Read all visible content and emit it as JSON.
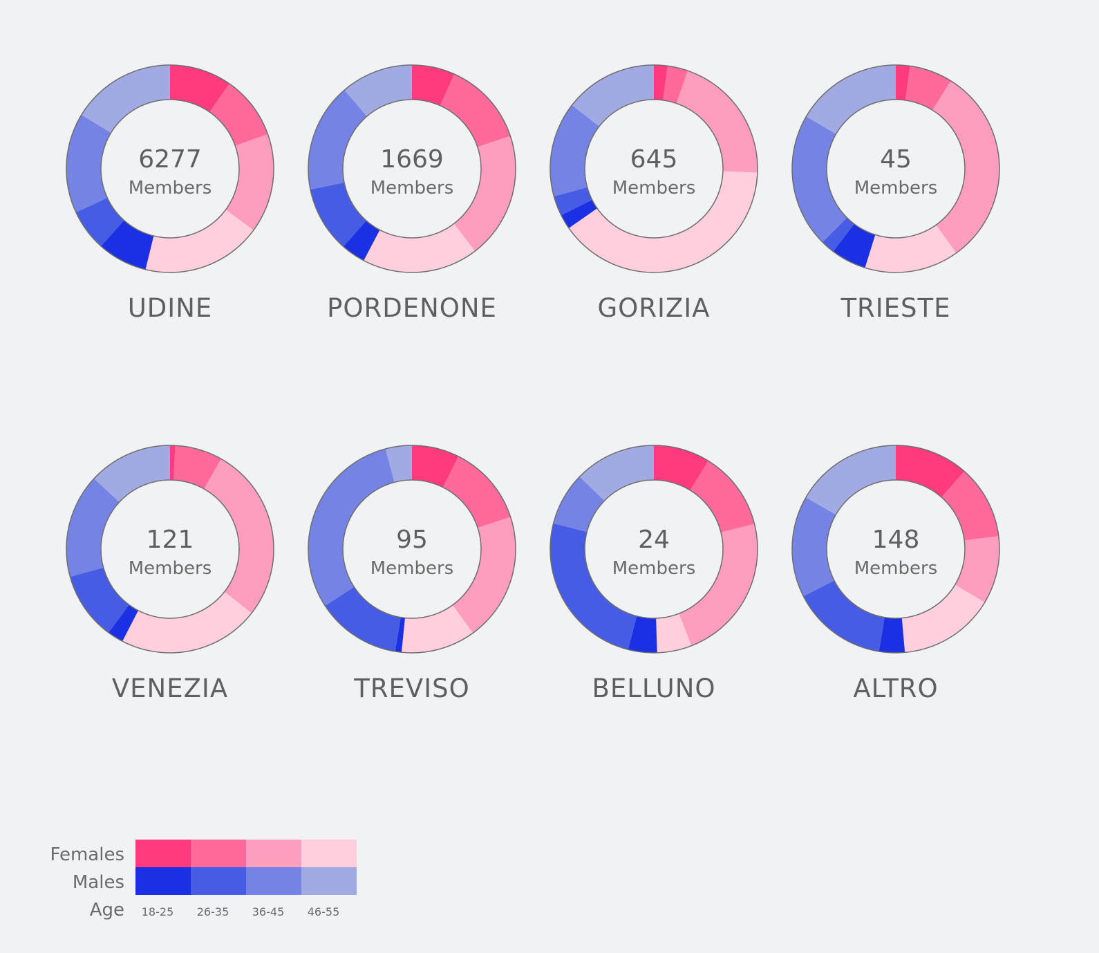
{
  "chart_data": {
    "type": "pie",
    "center_suffix": "Members",
    "colors": {
      "females": [
        "#ff3a7d",
        "#ff6a9b",
        "#ff9dbe",
        "#ffcfde"
      ],
      "males": [
        "#1b30e3",
        "#465ce4",
        "#7483e4",
        "#a2aae3"
      ],
      "background": "#f1f2f3",
      "stroke": "#6e6e6e"
    },
    "slice_order": [
      "F 18-25",
      "F 26-35",
      "F 36-45",
      "F 46-55",
      "M 18-25",
      "M 26-35",
      "M 36-45",
      "M 46-55"
    ],
    "charts": [
      {
        "city": "UDINE",
        "members": "6277",
        "shares": [
          0.097,
          0.099,
          0.155,
          0.187,
          0.078,
          0.065,
          0.156,
          0.163
        ]
      },
      {
        "city": "PORDENONE",
        "members": "1669",
        "shares": [
          0.067,
          0.132,
          0.197,
          0.181,
          0.038,
          0.103,
          0.169,
          0.113
        ]
      },
      {
        "city": "GORIZIA",
        "members": "645",
        "shares": [
          0.021,
          0.032,
          0.203,
          0.397,
          0.023,
          0.031,
          0.148,
          0.145
        ]
      },
      {
        "city": "TRIESTE",
        "members": "45",
        "shares": [
          0.022,
          0.067,
          0.312,
          0.147,
          0.055,
          0.022,
          0.209,
          0.166
        ]
      },
      {
        "city": "VENEZIA",
        "members": "121",
        "shares": [
          0.008,
          0.074,
          0.274,
          0.22,
          0.025,
          0.106,
          0.162,
          0.131
        ]
      },
      {
        "city": "TREVISO",
        "members": "95",
        "shares": [
          0.074,
          0.126,
          0.2,
          0.116,
          0.01,
          0.132,
          0.301,
          0.041
        ]
      },
      {
        "city": "BELLUNO",
        "members": "24",
        "shares": [
          0.088,
          0.123,
          0.23,
          0.054,
          0.045,
          0.25,
          0.083,
          0.127
        ]
      },
      {
        "city": "ALTRO",
        "members": "148",
        "shares": [
          0.115,
          0.115,
          0.106,
          0.15,
          0.04,
          0.149,
          0.158,
          0.167
        ]
      }
    ],
    "legend": {
      "rows": [
        "Females",
        "Males"
      ],
      "axis_label": "Age",
      "age_groups": [
        "18-25",
        "26-35",
        "36-45",
        "46-55"
      ]
    }
  }
}
